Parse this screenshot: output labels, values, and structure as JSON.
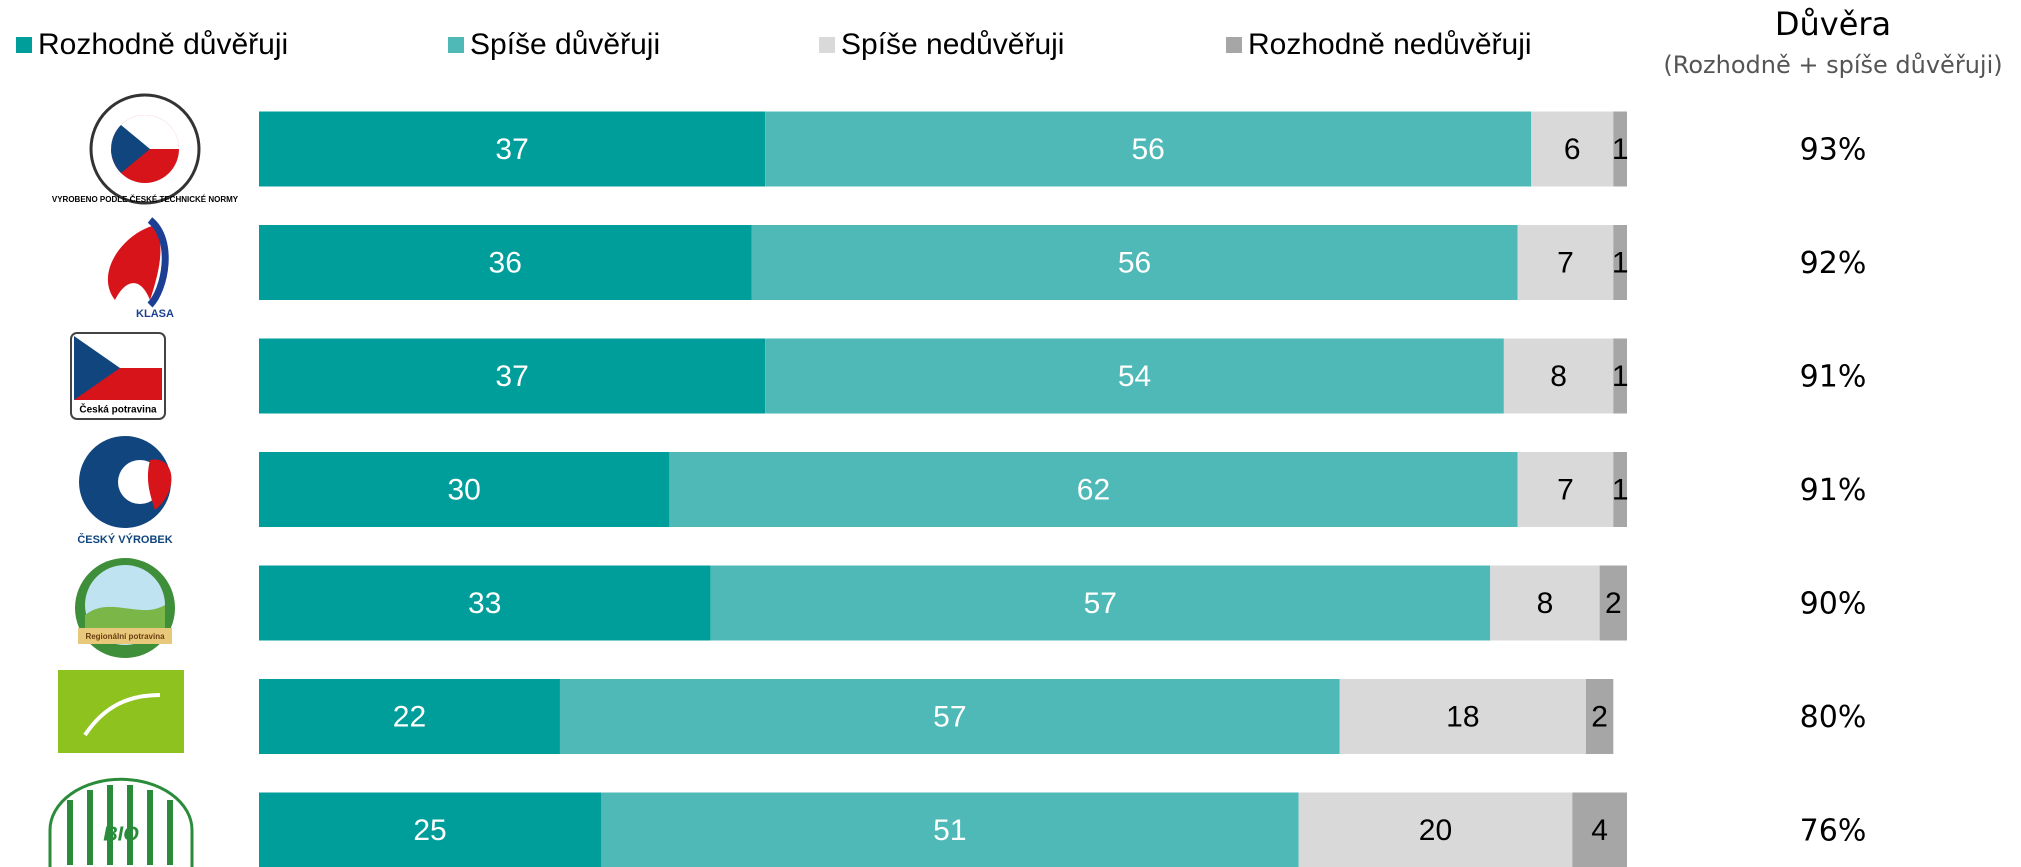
{
  "chart_data": {
    "type": "stacked-bar-horizontal",
    "categories": [
      null,
      null,
      null,
      null,
      null,
      null,
      null
    ],
    "series": [
      {
        "name": "Rozhodně důvěřuji",
        "color": "#009e9b",
        "values": [
          37,
          36,
          37,
          30,
          33,
          22,
          25
        ]
      },
      {
        "name": "Spíše důvěřuji",
        "color": "#4fb9b8",
        "values": [
          56,
          56,
          54,
          62,
          57,
          57,
          51
        ]
      },
      {
        "name": "Spíše nedůvěřuji",
        "color": "#d9d9d9",
        "values": [
          6,
          7,
          8,
          7,
          8,
          18,
          20
        ]
      },
      {
        "name": "Rozhodně nedůvěřuji",
        "color": "#a6a6a6",
        "values": [
          1,
          1,
          1,
          1,
          2,
          2,
          4
        ]
      }
    ],
    "xlim": [
      0,
      100
    ],
    "totals": {
      "title": "Důvěra",
      "subtitle": "(Rozhodně + spíše důvěřuji)",
      "values": [
        93,
        92,
        91,
        91,
        90,
        80,
        76
      ],
      "value_labels": [
        "93%",
        "92%",
        "91%",
        "91%",
        "90%",
        "80%",
        "76%"
      ]
    }
  },
  "logos": [
    "VYROBENO PODLE ČESKÉ TECHNICKÉ NORMY",
    "KLASA",
    "Česká potravina",
    "ČESKÝ VÝROBEK",
    "Regionální potravina",
    null,
    "BIO"
  ]
}
